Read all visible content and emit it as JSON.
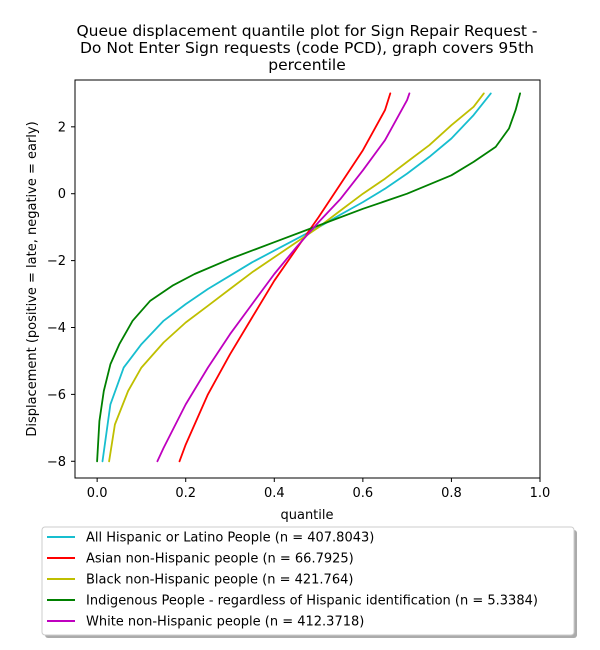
{
  "chart_data": {
    "type": "line",
    "title_lines": [
      "Queue displacement quantile plot for Sign Repair Request -",
      "Do Not Enter Sign  requests (code PCD), graph covers 95th",
      "percentile"
    ],
    "xlabel": "quantile",
    "ylabel": "Displacement (positive = late, negative = early)",
    "xlim": [
      -0.05,
      1.0
    ],
    "ylim": [
      -8.5,
      3.4
    ],
    "xticks": [
      "0.0",
      "0.2",
      "0.4",
      "0.6",
      "0.8",
      "1.0"
    ],
    "yticks": [
      "2",
      "0",
      "−2",
      "−4",
      "−6",
      "−8"
    ],
    "grid": false,
    "legend_position": "below plot",
    "series": [
      {
        "name": "All Hispanic or Latino People (n = 407.8043)",
        "color": "#17becf",
        "x": [
          0.012,
          0.03,
          0.06,
          0.1,
          0.15,
          0.2,
          0.25,
          0.3,
          0.35,
          0.4,
          0.45,
          0.5,
          0.55,
          0.6,
          0.65,
          0.7,
          0.75,
          0.8,
          0.85,
          0.889
        ],
        "y": [
          -8.0,
          -6.3,
          -5.2,
          -4.5,
          -3.8,
          -3.3,
          -2.85,
          -2.45,
          -2.05,
          -1.7,
          -1.35,
          -1.0,
          -0.62,
          -0.25,
          0.15,
          0.6,
          1.1,
          1.65,
          2.35,
          3.0
        ]
      },
      {
        "name": "Asian non-Hispanic people (n = 66.7925)",
        "color": "#ff0000",
        "x": [
          0.186,
          0.2,
          0.25,
          0.3,
          0.35,
          0.4,
          0.45,
          0.5,
          0.55,
          0.6,
          0.65,
          0.662
        ],
        "y": [
          -8.0,
          -7.5,
          -6.0,
          -4.8,
          -3.7,
          -2.6,
          -1.65,
          -0.7,
          0.3,
          1.3,
          2.5,
          3.0
        ]
      },
      {
        "name": "Black non-Hispanic people (n = 421.764)",
        "color": "#bfbf00",
        "x": [
          0.027,
          0.04,
          0.07,
          0.1,
          0.15,
          0.2,
          0.25,
          0.3,
          0.35,
          0.4,
          0.45,
          0.5,
          0.55,
          0.6,
          0.65,
          0.7,
          0.75,
          0.8,
          0.85,
          0.873
        ],
        "y": [
          -8.0,
          -6.9,
          -5.9,
          -5.2,
          -4.45,
          -3.85,
          -3.35,
          -2.85,
          -2.35,
          -1.9,
          -1.45,
          -1.0,
          -0.5,
          0.0,
          0.45,
          0.95,
          1.45,
          2.05,
          2.6,
          3.0
        ]
      },
      {
        "name": "Indigenous People - regardless of Hispanic identification (n = 5.3384)",
        "color": "#008000",
        "x": [
          0.0,
          0.005,
          0.015,
          0.03,
          0.05,
          0.08,
          0.12,
          0.17,
          0.22,
          0.3,
          0.4,
          0.5,
          0.6,
          0.7,
          0.8,
          0.85,
          0.9,
          0.93,
          0.945,
          0.955
        ],
        "y": [
          -8.0,
          -6.8,
          -5.9,
          -5.1,
          -4.5,
          -3.8,
          -3.2,
          -2.75,
          -2.4,
          -1.95,
          -1.45,
          -0.95,
          -0.45,
          0.0,
          0.55,
          0.95,
          1.4,
          1.95,
          2.5,
          3.0
        ]
      },
      {
        "name": "White non-Hispanic people (n = 412.3718)",
        "color": "#bf00bf",
        "x": [
          0.136,
          0.15,
          0.2,
          0.25,
          0.3,
          0.35,
          0.4,
          0.45,
          0.5,
          0.55,
          0.6,
          0.65,
          0.7,
          0.705
        ],
        "y": [
          -8.0,
          -7.6,
          -6.3,
          -5.2,
          -4.2,
          -3.3,
          -2.4,
          -1.6,
          -0.85,
          -0.15,
          0.7,
          1.6,
          2.8,
          3.0
        ]
      }
    ]
  }
}
